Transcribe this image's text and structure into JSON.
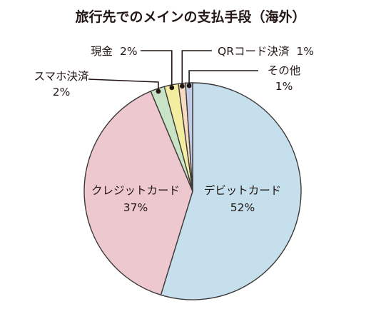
{
  "chart_data": {
    "type": "pie",
    "title": "旅行先でのメインの支払手段（海外）",
    "unit": "%",
    "slices": [
      {
        "name": "デビットカード",
        "value": 52,
        "color": "#c5e0ec"
      },
      {
        "name": "クレジットカード",
        "value": 37,
        "color": "#edc9cf"
      },
      {
        "name": "スマホ決済",
        "value": 2,
        "color": "#c8e3c5"
      },
      {
        "name": "現金",
        "value": 2,
        "color": "#f3eda1"
      },
      {
        "name": "QRコード決済",
        "value": 1,
        "color": "#f7dcc2"
      },
      {
        "name": "その他",
        "value": 1,
        "color": "#c2cce6"
      }
    ],
    "value_labels": [
      "52%",
      "37%",
      "2%",
      "2%",
      "1%",
      "1%"
    ]
  }
}
